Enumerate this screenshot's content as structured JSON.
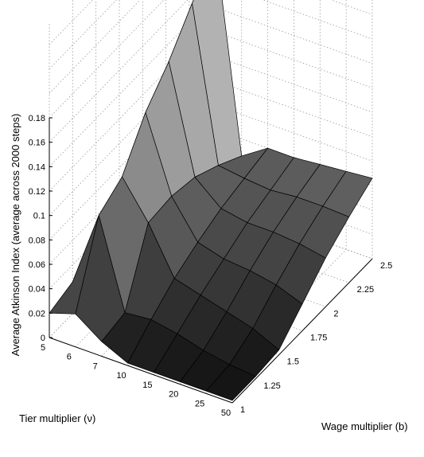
{
  "chart_data": {
    "type": "surface",
    "zlabel": "Average Atkinson Index (average across 2000 steps)",
    "xlabel": "Tier multiplier (ν)",
    "ylabel": "Wage multiplier (b)",
    "zlim": [
      0,
      0.18
    ],
    "z_ticks": [
      "0",
      "0.02",
      "0.04",
      "0.06",
      "0.08",
      "0.1",
      "0.12",
      "0.14",
      "0.16",
      "0.18"
    ],
    "x_ticks": [
      "5",
      "6",
      "7",
      "10",
      "15",
      "20",
      "25",
      "50"
    ],
    "y_ticks": [
      "1",
      "1.25",
      "1.5",
      "1.75",
      "2",
      "2.25",
      "2.5"
    ],
    "grid": true,
    "colormap": "gray",
    "z": [
      [
        0.02,
        0.026,
        0.018,
        0.012,
        0.01,
        0.008,
        0.006
      ],
      [
        0.027,
        0.088,
        0.1,
        0.133,
        0.155,
        0.183,
        0.21
      ],
      [
        0.012,
        0.016,
        0.07,
        0.072,
        0.068,
        0.058,
        0.046
      ],
      [
        0.002,
        0.018,
        0.032,
        0.042,
        0.05,
        0.055,
        0.06
      ],
      [
        0.002,
        0.014,
        0.026,
        0.036,
        0.046,
        0.053,
        0.06
      ],
      [
        0.002,
        0.008,
        0.02,
        0.034,
        0.046,
        0.055,
        0.062
      ],
      [
        0.002,
        0.004,
        0.014,
        0.03,
        0.044,
        0.055,
        0.064
      ],
      [
        0.002,
        0.002,
        0.004,
        0.022,
        0.04,
        0.054,
        0.066
      ]
    ]
  }
}
